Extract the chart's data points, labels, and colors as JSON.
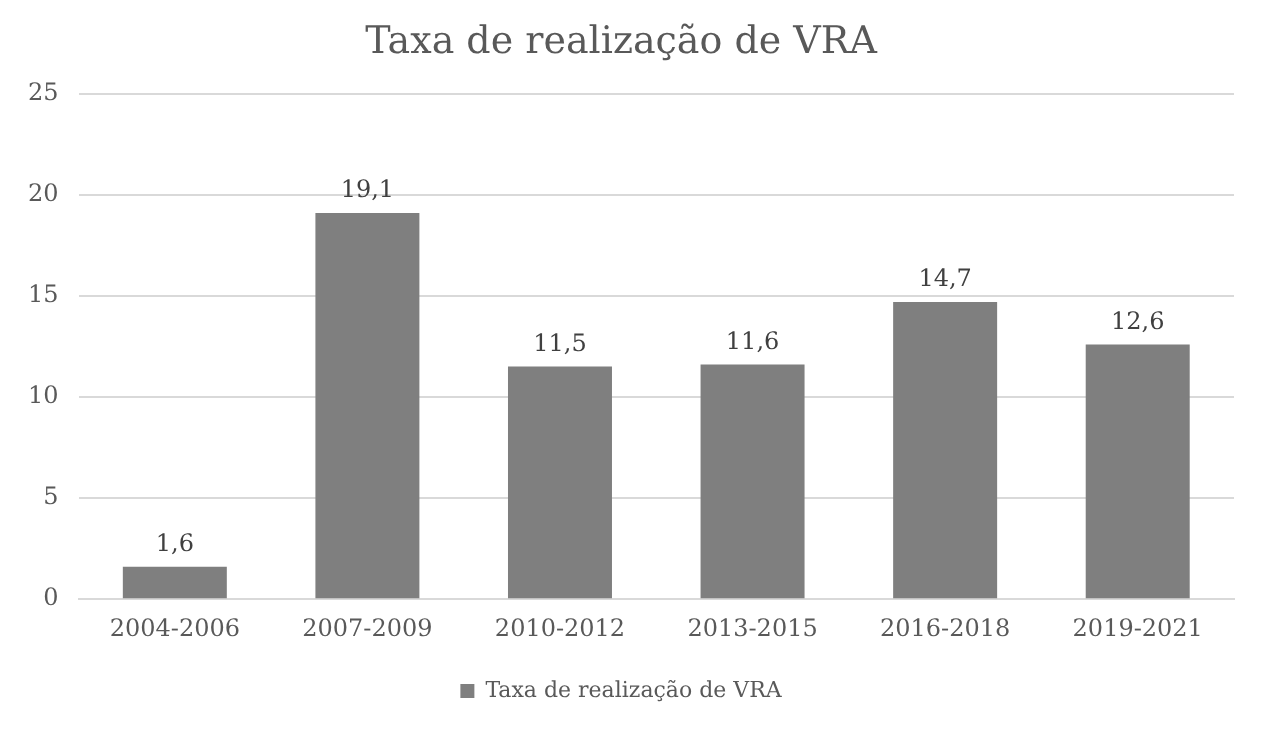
{
  "chart_data": {
    "type": "bar",
    "title": "Taxa de realização de VRA",
    "categories": [
      "2004-2006",
      "2007-2009",
      "2010-2012",
      "2013-2015",
      "2016-2018",
      "2019-2021"
    ],
    "series": [
      {
        "name": "Taxa de realização de VRA",
        "color": "#7f7f7f",
        "values": [
          1.6,
          19.1,
          11.5,
          11.6,
          14.7,
          12.6
        ],
        "value_labels": [
          "1,6",
          "19,1",
          "11,5",
          "11,6",
          "14,7",
          "12,6"
        ]
      }
    ],
    "ylim": [
      0,
      25
    ],
    "yticks": [
      0,
      5,
      10,
      15,
      20,
      25
    ],
    "grid": "y",
    "legend": "bottom"
  }
}
